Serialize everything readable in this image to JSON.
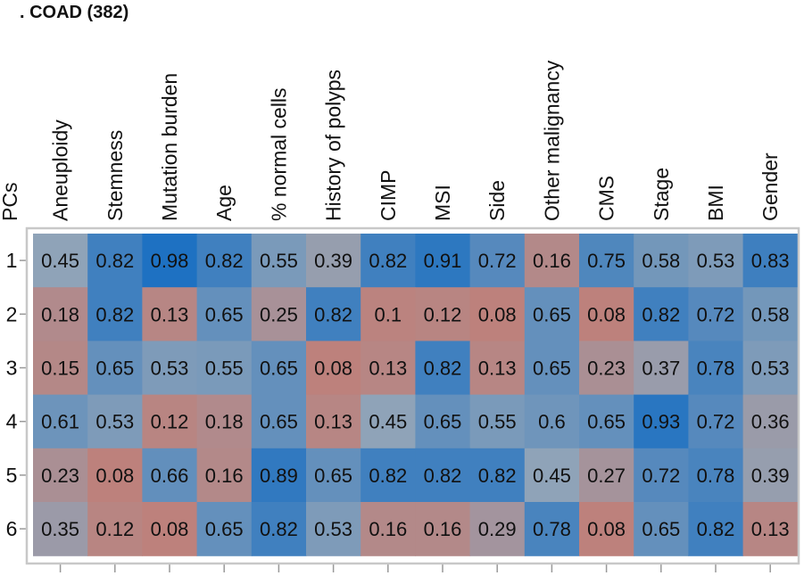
{
  "chart_data": {
    "type": "heatmap",
    "title": ". COAD (382)",
    "ylabel": "PCs",
    "columns": [
      "Aneuploidy",
      "Stemness",
      "Mutation burden",
      "Age",
      "% normal cells",
      "History of polyps",
      "CIMP",
      "MSI",
      "Side",
      "Other malignancy",
      "CMS",
      "Stage",
      "BMI",
      "Gender"
    ],
    "rows": [
      "1",
      "2",
      "3",
      "4",
      "5",
      "6"
    ],
    "values": [
      [
        0.45,
        0.82,
        0.98,
        0.82,
        0.55,
        0.39,
        0.82,
        0.91,
        0.72,
        0.16,
        0.75,
        0.58,
        0.53,
        0.83
      ],
      [
        0.18,
        0.82,
        0.13,
        0.65,
        0.25,
        0.82,
        0.1,
        0.12,
        0.08,
        0.65,
        0.08,
        0.82,
        0.72,
        0.58
      ],
      [
        0.15,
        0.65,
        0.53,
        0.55,
        0.65,
        0.08,
        0.13,
        0.82,
        0.13,
        0.65,
        0.23,
        0.37,
        0.78,
        0.53
      ],
      [
        0.61,
        0.53,
        0.12,
        0.18,
        0.65,
        0.13,
        0.45,
        0.65,
        0.55,
        0.6,
        0.65,
        0.93,
        0.72,
        0.36
      ],
      [
        0.23,
        0.08,
        0.66,
        0.16,
        0.89,
        0.65,
        0.82,
        0.82,
        0.82,
        0.45,
        0.27,
        0.72,
        0.78,
        0.39
      ],
      [
        0.35,
        0.12,
        0.08,
        0.65,
        0.82,
        0.53,
        0.16,
        0.16,
        0.29,
        0.78,
        0.08,
        0.65,
        0.82,
        0.13
      ]
    ],
    "value_range": [
      0,
      1
    ],
    "colors": {
      "low": "#c77a6f",
      "mid": "#8fa3b8",
      "high": "#1a6fc2",
      "frame": "#c8c8c8"
    }
  }
}
